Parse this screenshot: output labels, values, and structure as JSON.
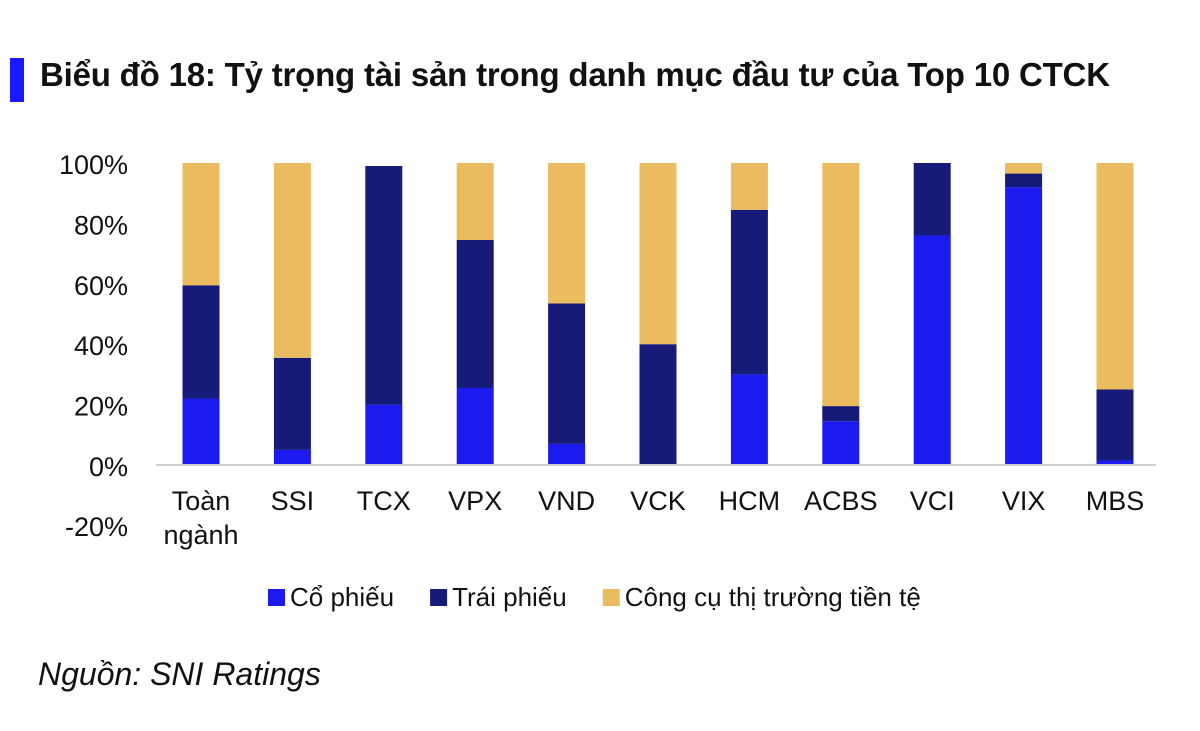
{
  "header": {
    "title": "Biểu đồ 18: Tỷ trọng tài sản trong danh mục đầu tư của Top 10 CTCK",
    "accent_color": "#1a1aff"
  },
  "footer": {
    "source": "Nguồn: SNI Ratings"
  },
  "chart_data": {
    "type": "bar",
    "stacked": true,
    "title": "",
    "xlabel": "",
    "ylabel": "",
    "ylim": [
      -0.2,
      1.0
    ],
    "yticks": [
      -0.2,
      0,
      0.2,
      0.4,
      0.6,
      0.8,
      1.0
    ],
    "ytick_labels": [
      "-20%",
      "0%",
      "20%",
      "40%",
      "60%",
      "80%",
      "100%"
    ],
    "categories": [
      "Toàn ngành",
      "SSI",
      "TCX",
      "VPX",
      "VND",
      "VCK",
      "HCM",
      "ACBS",
      "VCI",
      "VIX",
      "MBS"
    ],
    "series": [
      {
        "name": "Cổ phiếu",
        "color": "#1b1bf0",
        "values": [
          0.22,
          0.05,
          0.2,
          0.255,
          0.07,
          0.0,
          0.3,
          0.145,
          0.76,
          0.92,
          0.015
        ]
      },
      {
        "name": "Trái phiếu",
        "color": "#161a78",
        "values": [
          0.375,
          0.305,
          0.79,
          0.49,
          0.465,
          0.4,
          0.545,
          0.05,
          0.24,
          0.045,
          0.235
        ]
      },
      {
        "name": "Công cụ thị trường tiền tệ",
        "color": "#ebbc5f",
        "values": [
          0.405,
          0.645,
          0.0,
          0.255,
          0.465,
          0.6,
          0.155,
          0.805,
          0.0,
          0.035,
          0.75
        ]
      }
    ],
    "grid": false,
    "legend": "bottom"
  }
}
